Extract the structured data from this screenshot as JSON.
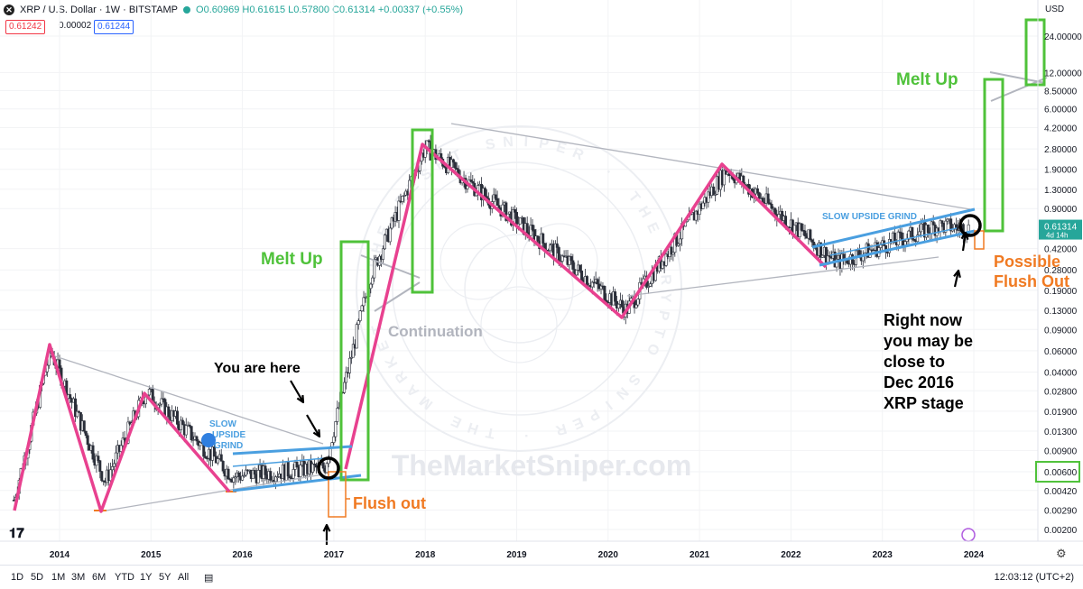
{
  "header": {
    "symbol": "XRP / U.S. Dollar · 1W · BITSTAMP",
    "ohlc": "O0.60969 H0.61615 L0.57800 C0.61314 +0.00337 (+0.55%)",
    "bid": "0.61242",
    "spread": "0.00002",
    "ask": "0.61244",
    "currency": "USD"
  },
  "footer": {
    "timeframes": [
      "1D",
      "5D",
      "1M",
      "3M",
      "6M",
      "YTD",
      "1Y",
      "5Y",
      "All"
    ],
    "clock": "12:03:12 (UTC+2)"
  },
  "colors": {
    "up": "#26a69a",
    "pink": "#e8418f",
    "blue": "#4a9fe0",
    "green": "#4fc23a",
    "orange": "#f07a22",
    "gray": "#b2b5be"
  },
  "chart_data": {
    "type": "candlestick",
    "symbol": "XRP / U.S. Dollar",
    "interval": "1W",
    "y_scale": "log",
    "y_ticks": [
      "24.00000",
      "12.00000",
      "8.50000",
      "6.00000",
      "4.20000",
      "2.80000",
      "1.90000",
      "1.30000",
      "0.90000",
      "0.61314",
      "0.42000",
      "0.28000",
      "0.19000",
      "0.13000",
      "0.09000",
      "0.06000",
      "0.04000",
      "0.02800",
      "0.01900",
      "0.01300",
      "0.00900",
      "0.00600",
      "0.00420",
      "0.00290",
      "0.00200"
    ],
    "x_ticks": [
      "2014",
      "2015",
      "2016",
      "2017",
      "2018",
      "2019",
      "2020",
      "2021",
      "2022",
      "2023",
      "2024"
    ],
    "last_price": 0.61314,
    "last_price_extra": "4d 14h",
    "highlighted_tick": "0.00600",
    "price_path": [
      [
        2013.5,
        0.0035
      ],
      [
        2013.9,
        0.06
      ],
      [
        2014.5,
        0.005
      ],
      [
        2014.95,
        0.028
      ],
      [
        2015.9,
        0.0055
      ],
      [
        2016.9,
        0.0065
      ],
      [
        2017.4,
        0.25
      ],
      [
        2018.0,
        2.9
      ],
      [
        2020.2,
        0.13
      ],
      [
        2021.3,
        1.9
      ],
      [
        2022.5,
        0.32
      ],
      [
        2023.6,
        0.65
      ],
      [
        2023.95,
        0.61314
      ]
    ],
    "annotations": [
      {
        "id": "melt1",
        "text": "Melt Up"
      },
      {
        "id": "melt2",
        "text": "Melt Up"
      },
      {
        "id": "cont",
        "text": "Continuation"
      },
      {
        "id": "here",
        "text": "You are here"
      },
      {
        "id": "slow1",
        "text": "SLOW UPSIDE GRIND"
      },
      {
        "id": "slow2",
        "text": "SLOW UPSIDE GRIND"
      },
      {
        "id": "flush1",
        "text": "Flush out"
      },
      {
        "id": "flush2a",
        "text": "Possible"
      },
      {
        "id": "flush2b",
        "text": "Flush Out"
      },
      {
        "id": "rn1",
        "text": "Right now"
      },
      {
        "id": "rn2",
        "text": "you may be"
      },
      {
        "id": "rn3",
        "text": "close to"
      },
      {
        "id": "rn4",
        "text": "Dec 2016"
      },
      {
        "id": "rn5",
        "text": "XRP stage"
      }
    ],
    "watermark": "TheMarketSniper.com",
    "stamp_text": "THE RESET SNIPER · THE CRYPTO SNIPER · THE MARKET"
  }
}
